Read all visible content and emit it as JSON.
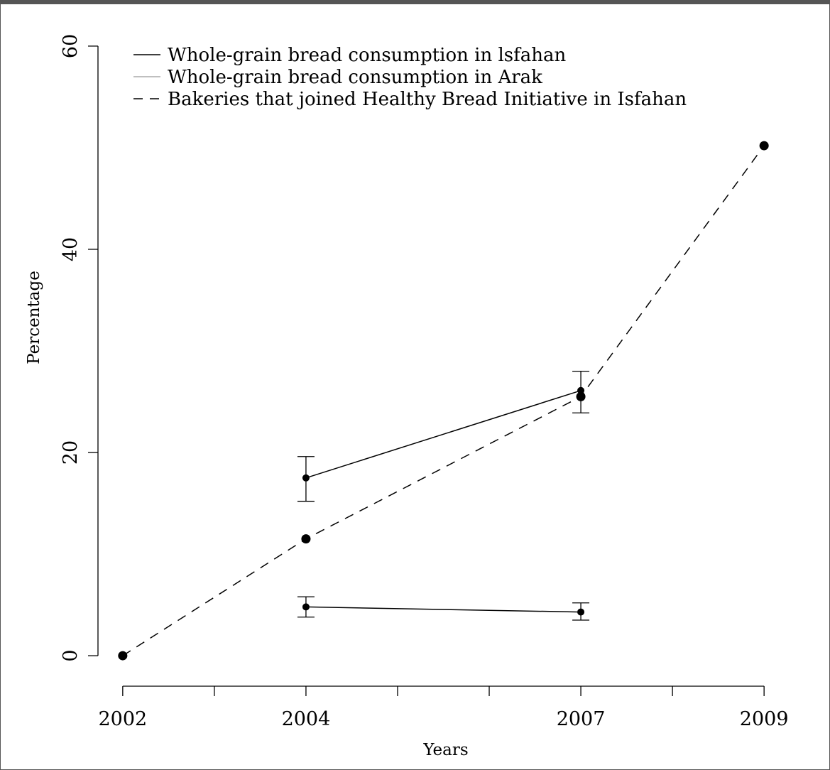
{
  "chart_data": {
    "type": "line",
    "xlabel": "Years",
    "ylabel": "Percentage",
    "x_ticks": [
      2002,
      2003,
      2004,
      2005,
      2006,
      2007,
      2008,
      2009
    ],
    "x_tick_labels": [
      {
        "value": 2002,
        "label": "2002"
      },
      {
        "value": 2004,
        "label": "2004"
      },
      {
        "value": 2007,
        "label": "2007"
      },
      {
        "value": 2009,
        "label": "2009"
      }
    ],
    "y_ticks": [
      0,
      20,
      40,
      60
    ],
    "y_tick_labels": [
      "0",
      "20",
      "40",
      "60"
    ],
    "xlim": [
      2001.73,
      2009.27
    ],
    "ylim": [
      -3,
      63
    ],
    "grid": false,
    "legend_position": "top-left",
    "series": [
      {
        "name": "Whole-grain bread consumption in lsfahan",
        "style": "solid",
        "color": "#000000",
        "x": [
          2004,
          2007
        ],
        "y": [
          17.5,
          26.1
        ],
        "error_lower": [
          15.2,
          23.9
        ],
        "error_upper": [
          19.6,
          28.0
        ]
      },
      {
        "name": "Whole-grain bread consumption in Arak",
        "style": "solid",
        "color": "#000000",
        "legend_color": "#aaaaaa",
        "x": [
          2004,
          2007
        ],
        "y": [
          4.8,
          4.3
        ],
        "error_lower": [
          3.8,
          3.5
        ],
        "error_upper": [
          5.8,
          5.2
        ]
      },
      {
        "name": "Bakeries that joined Healthy Bread Initiative in Isfahan",
        "style": "dashed",
        "color": "#000000",
        "x": [
          2002,
          2004,
          2007,
          2009
        ],
        "y": [
          0,
          11.5,
          25.5,
          50.2
        ]
      }
    ]
  }
}
